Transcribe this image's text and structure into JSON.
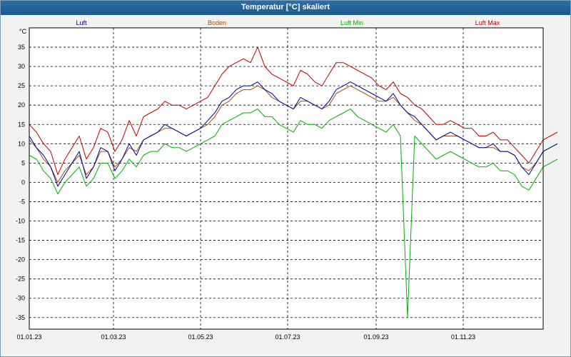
{
  "window": {
    "title": "Temperatur [°C] skaliert"
  },
  "chart_data": {
    "type": "line",
    "title": "Temperatur [°C] skaliert",
    "ylabel": "°C",
    "ylim": [
      -38,
      40
    ],
    "yticks": [
      35,
      30,
      25,
      20,
      15,
      10,
      5,
      0,
      -5,
      -10,
      -15,
      -20,
      -25,
      -30,
      -35
    ],
    "xlim": [
      0,
      360
    ],
    "xticks": [
      {
        "label": "01.01.23",
        "day": 0
      },
      {
        "label": "01.03.23",
        "day": 59
      },
      {
        "label": "01.05.23",
        "day": 120
      },
      {
        "label": "01.07.23",
        "day": 181
      },
      {
        "label": "01.09.23",
        "day": 243
      },
      {
        "label": "01.11.23",
        "day": 304
      }
    ],
    "grid": true,
    "legend_position": "top",
    "x_step_days": 5,
    "series": [
      {
        "name": "Luft",
        "color": "#0000a0",
        "values": [
          12,
          9,
          7,
          4,
          -1,
          2,
          5,
          8,
          1,
          4,
          9,
          8,
          3,
          6,
          10,
          7,
          11,
          12,
          13,
          15,
          14,
          13,
          12,
          13,
          14,
          16,
          18,
          21,
          22,
          24,
          25,
          25,
          26,
          24,
          23,
          21,
          20,
          19,
          22,
          21,
          20,
          19,
          21,
          24,
          25,
          26,
          25,
          24,
          23,
          22,
          21,
          23,
          20,
          18,
          17,
          15,
          13,
          11,
          12,
          13,
          12,
          11,
          10,
          9,
          9,
          10,
          8,
          8,
          7,
          4,
          2,
          5,
          8,
          9,
          10
        ]
      },
      {
        "name": "Boden",
        "color": "#a05010",
        "values": [
          11,
          9,
          6,
          4,
          0,
          3,
          5,
          7,
          2,
          4,
          8,
          8,
          4,
          6,
          9,
          8,
          11,
          12,
          13,
          14,
          14,
          13,
          12,
          13,
          14,
          15,
          17,
          20,
          21,
          23,
          24,
          24,
          25,
          24,
          22,
          21,
          20,
          19,
          21,
          21,
          20,
          19,
          20,
          23,
          24,
          25,
          24,
          23,
          22,
          21,
          21,
          22,
          20,
          18,
          16,
          15,
          13,
          11,
          12,
          12,
          12,
          11,
          10,
          9,
          9,
          9,
          8,
          8,
          7,
          4,
          3,
          5,
          8,
          9,
          10
        ]
      },
      {
        "name": "Luft Min",
        "color": "#00b000",
        "values": [
          7,
          6,
          3,
          1,
          -3,
          0,
          2,
          4,
          -1,
          1,
          5,
          5,
          1,
          3,
          6,
          4,
          7,
          8,
          8,
          10,
          9,
          9,
          8,
          9,
          10,
          11,
          12,
          15,
          16,
          17,
          18,
          18,
          19,
          17,
          17,
          15,
          14,
          13,
          16,
          15,
          15,
          14,
          16,
          17,
          18,
          19,
          17,
          16,
          15,
          14,
          13,
          15,
          12,
          -35,
          12,
          10,
          8,
          6,
          7,
          8,
          7,
          6,
          5,
          4,
          4,
          5,
          3,
          3,
          2,
          -1,
          -2,
          1,
          4,
          5,
          6
        ]
      },
      {
        "name": "Luft Max",
        "color": "#c00000",
        "values": [
          15,
          13,
          10,
          8,
          2,
          6,
          9,
          12,
          6,
          9,
          14,
          13,
          8,
          11,
          16,
          12,
          17,
          18,
          19,
          21,
          20,
          20,
          19,
          20,
          21,
          22,
          25,
          28,
          30,
          31,
          32,
          31,
          35,
          30,
          28,
          27,
          26,
          25,
          29,
          28,
          26,
          25,
          28,
          31,
          31,
          30,
          29,
          28,
          27,
          25,
          24,
          26,
          23,
          22,
          20,
          19,
          17,
          15,
          15,
          16,
          15,
          14,
          14,
          12,
          12,
          13,
          11,
          11,
          9,
          7,
          5,
          8,
          11,
          12,
          13
        ]
      }
    ]
  }
}
